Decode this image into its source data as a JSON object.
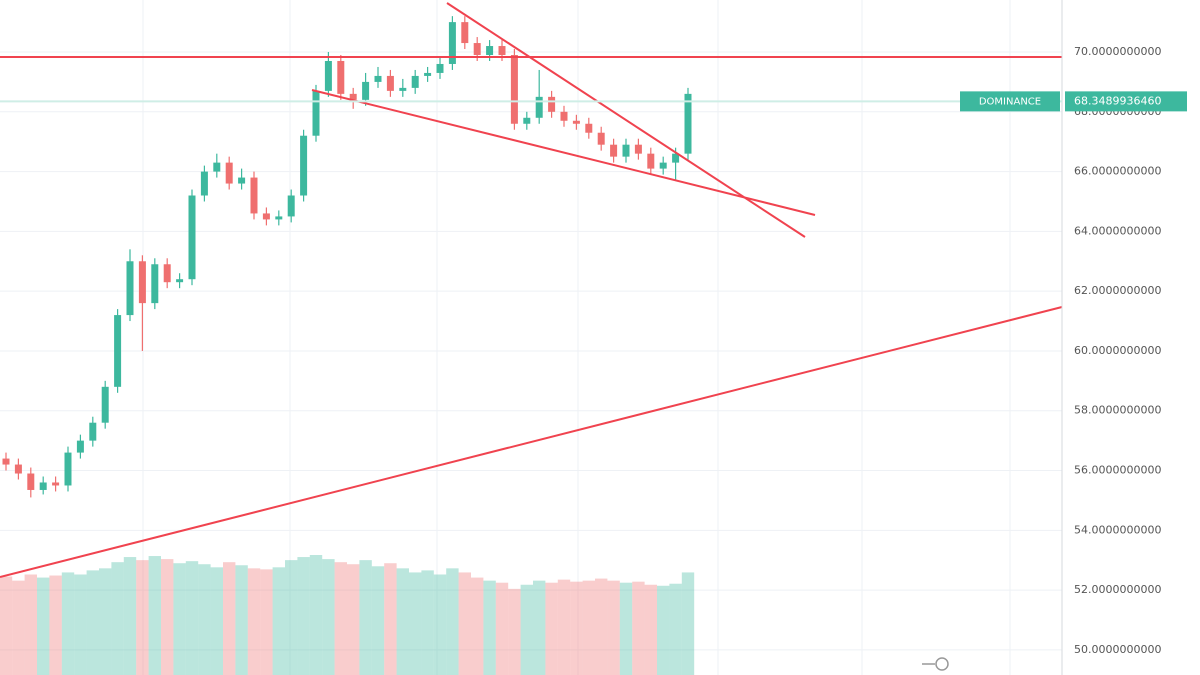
{
  "chart_data": {
    "type": "candlestick",
    "symbol_tag": "DOMINANCE",
    "last_price": {
      "value": 68.348993646,
      "label": "68.3489936460"
    },
    "up_color": "#3db89e",
    "down_color": "#ef6f6f",
    "open": [
      56.4,
      56.2,
      55.9,
      55.35,
      55.6,
      55.5,
      56.6,
      57.0,
      57.6,
      58.8,
      61.2,
      63.0,
      61.6,
      62.9,
      62.3,
      62.4,
      65.2,
      66.0,
      66.3,
      65.6,
      65.8,
      64.6,
      64.4,
      64.5,
      65.2,
      67.2,
      68.7,
      69.7,
      68.6,
      68.4,
      69.0,
      69.2,
      68.7,
      68.8,
      69.2,
      69.3,
      69.6,
      71.0,
      70.3,
      69.9,
      70.2,
      69.9,
      67.6,
      67.8,
      68.5,
      68.0,
      67.7,
      67.6,
      67.3,
      66.9,
      66.5,
      66.9,
      66.6,
      66.1,
      66.3,
      66.6
    ],
    "high": [
      56.6,
      56.4,
      56.1,
      55.8,
      55.8,
      56.8,
      57.2,
      57.8,
      59.0,
      61.4,
      63.4,
      63.2,
      63.1,
      63.1,
      62.6,
      65.4,
      66.2,
      66.6,
      66.5,
      66.1,
      66.0,
      64.8,
      64.7,
      65.4,
      67.4,
      68.9,
      70.0,
      69.9,
      68.8,
      69.3,
      69.5,
      69.4,
      69.1,
      69.4,
      69.5,
      69.8,
      71.2,
      71.2,
      70.5,
      70.4,
      70.4,
      70.1,
      68.0,
      69.4,
      68.7,
      68.2,
      67.9,
      67.8,
      67.5,
      67.1,
      67.1,
      67.1,
      66.8,
      66.5,
      66.8,
      68.8
    ],
    "low": [
      56.0,
      55.7,
      55.1,
      55.2,
      55.3,
      55.3,
      56.4,
      56.8,
      57.4,
      58.6,
      61.0,
      60.0,
      61.4,
      62.1,
      62.1,
      62.2,
      65.0,
      65.8,
      65.4,
      65.4,
      64.4,
      64.2,
      64.2,
      64.3,
      65.0,
      67.0,
      68.5,
      68.4,
      68.1,
      68.2,
      68.8,
      68.5,
      68.5,
      68.6,
      69.0,
      69.1,
      69.4,
      70.1,
      69.7,
      69.7,
      69.7,
      67.4,
      67.4,
      67.6,
      67.8,
      67.5,
      67.4,
      67.1,
      66.7,
      66.3,
      66.3,
      66.4,
      65.9,
      65.9,
      65.7,
      66.4
    ],
    "close": [
      56.2,
      55.9,
      55.35,
      55.6,
      55.5,
      56.6,
      57.0,
      57.6,
      58.8,
      61.2,
      63.0,
      61.6,
      62.9,
      62.3,
      62.4,
      65.2,
      66.0,
      66.3,
      65.6,
      65.8,
      64.6,
      64.4,
      64.5,
      65.2,
      67.2,
      68.7,
      69.7,
      68.6,
      68.4,
      69.0,
      69.2,
      68.7,
      68.8,
      69.2,
      69.3,
      69.6,
      71.0,
      70.3,
      69.9,
      70.2,
      69.9,
      67.6,
      67.8,
      68.5,
      68.0,
      67.7,
      67.6,
      67.3,
      66.9,
      66.5,
      66.9,
      66.6,
      66.1,
      66.3,
      66.6,
      68.6
    ],
    "volume": [
      96,
      92,
      98,
      95,
      97,
      100,
      98,
      102,
      104,
      110,
      115,
      112,
      116,
      113,
      109,
      111,
      108,
      105,
      110,
      107,
      104,
      103,
      105,
      112,
      115,
      117,
      113,
      110,
      108,
      112,
      106,
      109,
      104,
      100,
      102,
      98,
      104,
      100,
      95,
      92,
      90,
      84,
      88,
      92,
      90,
      93,
      91,
      92,
      94,
      92,
      90,
      91,
      88,
      87,
      89,
      100
    ],
    "ylim": [
      49.16,
      71.74
    ],
    "yticks": [
      {
        "value": 50,
        "label": "50.0000000000"
      },
      {
        "value": 52,
        "label": "52.0000000000"
      },
      {
        "value": 54,
        "label": "54.0000000000"
      },
      {
        "value": 56,
        "label": "56.0000000000"
      },
      {
        "value": 58,
        "label": "58.0000000000"
      },
      {
        "value": 60,
        "label": "60.0000000000"
      },
      {
        "value": 62,
        "label": "62.0000000000"
      },
      {
        "value": 64,
        "label": "64.0000000000"
      },
      {
        "value": 66,
        "label": "66.0000000000"
      },
      {
        "value": 68,
        "label": "68.0000000000"
      },
      {
        "value": 70,
        "label": "70.0000000000"
      }
    ],
    "grid": true
  }
}
